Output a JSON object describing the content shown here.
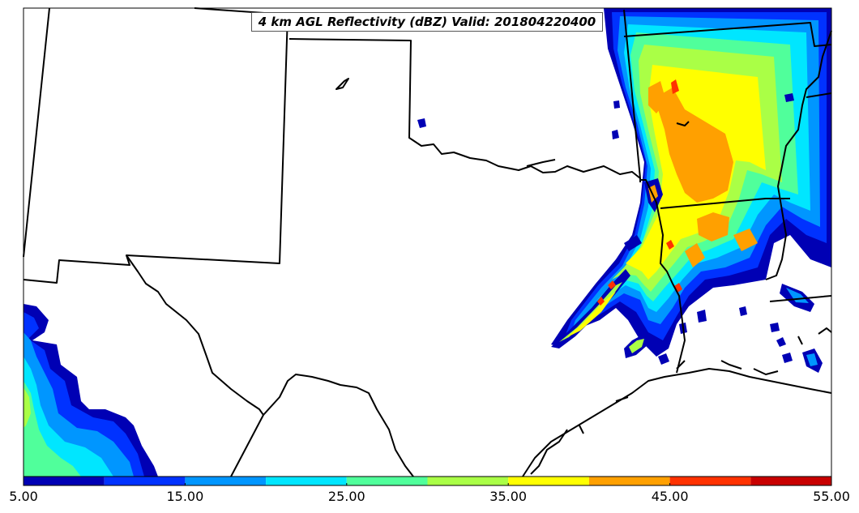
{
  "map": {
    "title": "4 km AGL Reflectivity (dBZ) Valid: 201804220400",
    "variable": "Reflectivity",
    "units": "dBZ"
  },
  "colorbar": {
    "ticks": [
      "5.00",
      "15.00",
      "25.00",
      "35.00",
      "45.00",
      "55.00"
    ],
    "min": 5,
    "max": 55,
    "interval": 5,
    "colors": [
      "#0000b4",
      "#0032ff",
      "#0096ff",
      "#00e6ff",
      "#50ff9b",
      "#aaff46",
      "#ffff00",
      "#ffa000",
      "#ff3200",
      "#c80000"
    ]
  }
}
